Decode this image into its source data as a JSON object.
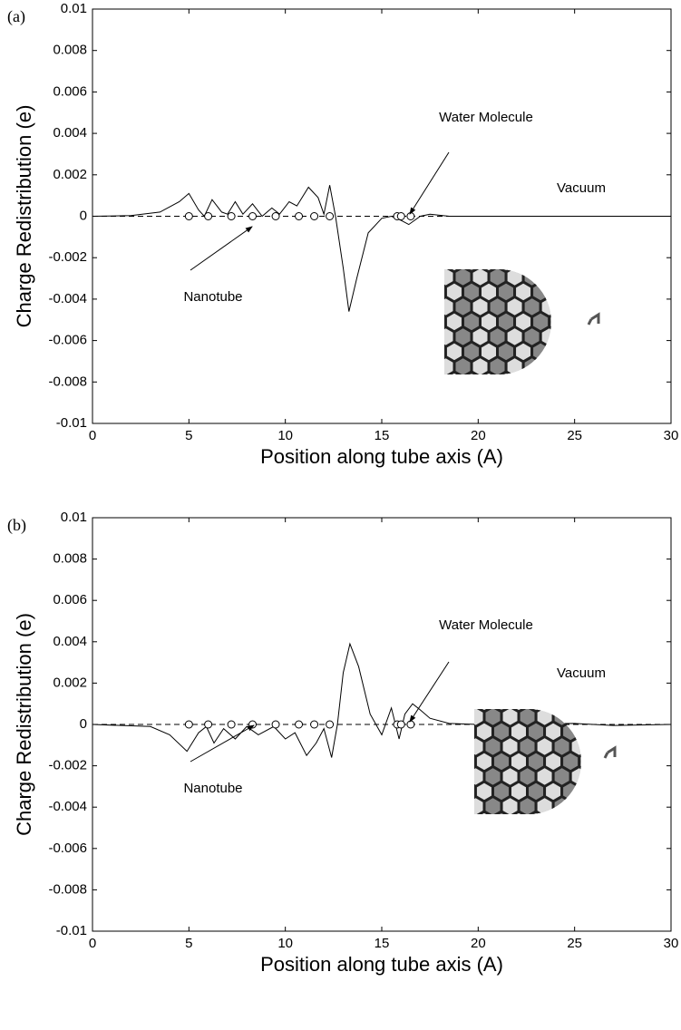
{
  "chart_data": [
    {
      "type": "line",
      "panel_label": "(a)",
      "x_label": "Position along tube axis (A)",
      "y_label": "Charge Redistribution (e)",
      "xlim": [
        0,
        30
      ],
      "ylim": [
        -0.01,
        0.01
      ],
      "xticks": [
        0,
        5,
        10,
        15,
        20,
        25,
        30
      ],
      "yticks": [
        0.01,
        0.008,
        0.006,
        0.004,
        0.002,
        0,
        -0.002,
        -0.004,
        -0.006,
        -0.008,
        -0.01
      ],
      "reference_line": 0,
      "annotations": [
        "Water Molecule",
        "Vacuum",
        "Nanotube"
      ],
      "series": [
        {
          "color": "#000000",
          "style": "solid",
          "x": [
            0,
            2,
            3.5,
            4.5,
            5,
            5.5,
            5.8,
            6.2,
            6.7,
            7,
            7.4,
            7.8,
            8.3,
            8.8,
            9.3,
            9.7,
            10.2,
            10.6,
            11.2,
            11.7,
            12,
            12.3,
            12.6,
            13,
            13.3,
            13.7,
            14.3,
            15,
            15.5,
            16,
            16.4,
            17,
            17.5,
            18.5,
            22,
            30
          ],
          "values": [
            0,
            3e-05,
            0.0002,
            0.0007,
            0.0011,
            0.0003,
            0,
            0.0008,
            0.0002,
            0.0001,
            0.0007,
            0.0001,
            0.0006,
            0,
            0.0004,
            0.0001,
            0.0007,
            0.0005,
            0.0014,
            0.0009,
            0.0001,
            0.0015,
            0,
            -0.0025,
            -0.0046,
            -0.003,
            -0.0008,
            -0.0001,
            0,
            -0.0002,
            -0.0004,
            0,
            0.0001,
            0,
            0,
            0
          ]
        },
        {
          "color": "#000000",
          "style": "markers",
          "x": [
            5,
            6,
            7.2,
            8.3,
            9.5,
            10.7,
            11.5,
            12.3,
            15.8,
            16,
            16.5
          ],
          "values": [
            0,
            0,
            0,
            0,
            0,
            0,
            0,
            0,
            0,
            0,
            0
          ]
        }
      ]
    },
    {
      "type": "line",
      "panel_label": "(b)",
      "x_label": "Position along tube axis (A)",
      "y_label": "Charge Redistribution (e)",
      "xlim": [
        0,
        30
      ],
      "ylim": [
        -0.01,
        0.01
      ],
      "xticks": [
        0,
        5,
        10,
        15,
        20,
        25,
        30
      ],
      "yticks": [
        0.01,
        0.008,
        0.006,
        0.004,
        0.002,
        0,
        -0.002,
        -0.004,
        -0.006,
        -0.008,
        -0.01
      ],
      "reference_line": 0,
      "annotations": [
        "Water Molecule",
        "Vacuum",
        "Nanotube"
      ],
      "series": [
        {
          "color": "#000000",
          "style": "solid",
          "x": [
            0,
            3,
            4,
            4.9,
            5.5,
            5.9,
            6.3,
            6.8,
            7.4,
            8,
            8.6,
            9.4,
            10,
            10.5,
            11.1,
            11.6,
            12,
            12.4,
            12.7,
            13,
            13.35,
            13.8,
            14.4,
            15,
            15.5,
            15.9,
            16.2,
            16.6,
            17,
            17.5,
            18.5,
            20,
            25,
            27,
            30
          ],
          "values": [
            0,
            -0.0001,
            -0.0005,
            -0.0013,
            -0.0004,
            -0.0001,
            -0.0009,
            -0.0002,
            -0.0007,
            -0.0001,
            -0.0005,
            -0.0001,
            -0.0007,
            -0.0004,
            -0.0015,
            -0.0009,
            -0.0002,
            -0.0016,
            0,
            0.0025,
            0.0039,
            0.0028,
            0.0005,
            -0.0005,
            0.0008,
            -0.0007,
            0.0005,
            0.001,
            0.0007,
            0.0003,
            5e-05,
            0,
            5e-05,
            -5e-05,
            0
          ]
        },
        {
          "color": "#000000",
          "style": "markers",
          "x": [
            5,
            6,
            7.2,
            8.3,
            9.5,
            10.7,
            11.5,
            12.3,
            15.8,
            16,
            16.5
          ],
          "values": [
            0,
            0,
            0,
            0,
            0,
            0,
            0,
            0,
            0,
            0,
            0
          ]
        }
      ]
    }
  ]
}
